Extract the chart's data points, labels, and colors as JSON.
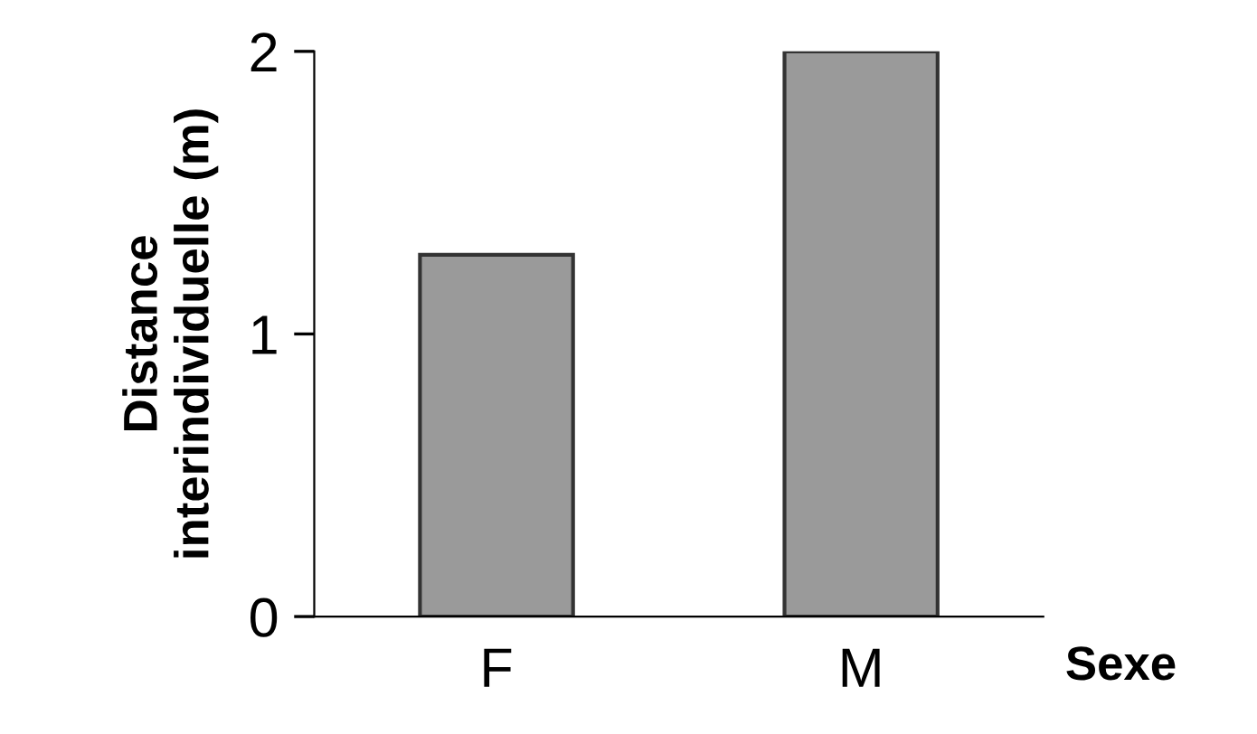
{
  "chart_data": {
    "type": "bar",
    "xlabel": "Sexe",
    "ylabel": "Distance\ninterindividuelle (m)",
    "categories": [
      "F",
      "M"
    ],
    "values": [
      1.28,
      2.0
    ],
    "color": "#9a9a9a",
    "ylim": [
      0,
      2
    ],
    "yticks": [
      0,
      1,
      2
    ],
    "grid": false
  }
}
